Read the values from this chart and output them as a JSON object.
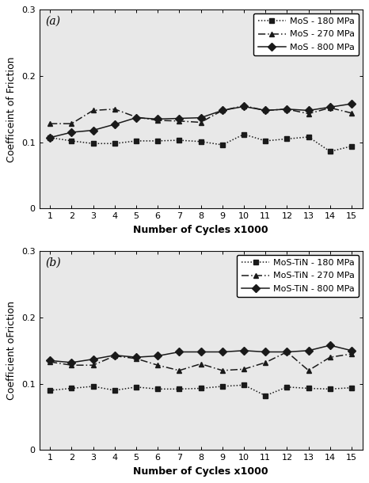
{
  "x": [
    1,
    2,
    3,
    4,
    5,
    6,
    7,
    8,
    9,
    10,
    11,
    12,
    13,
    14,
    15
  ],
  "panel_a": {
    "label": "(a)",
    "ylabel": "Coefficeint of Friction",
    "xlabel": "Number of Cycles x1000",
    "series": [
      {
        "label": "MoS - 180 MPa",
        "linestyle": "dotted",
        "marker": "s",
        "color": "#1a1a1a",
        "values": [
          0.107,
          0.102,
          0.098,
          0.098,
          0.102,
          0.102,
          0.103,
          0.101,
          0.096,
          0.112,
          0.102,
          0.105,
          0.108,
          0.086,
          0.094
        ]
      },
      {
        "label": "MoS - 270 MPa",
        "linestyle": "dashed",
        "marker": "^",
        "color": "#1a1a1a",
        "values": [
          0.128,
          0.128,
          0.148,
          0.15,
          0.138,
          0.133,
          0.132,
          0.13,
          0.148,
          0.155,
          0.148,
          0.15,
          0.143,
          0.152,
          0.144
        ]
      },
      {
        "label": "MoS - 800 MPa",
        "linestyle": "solid",
        "marker": "D",
        "color": "#1a1a1a",
        "values": [
          0.107,
          0.115,
          0.118,
          0.127,
          0.137,
          0.135,
          0.136,
          0.137,
          0.148,
          0.154,
          0.148,
          0.15,
          0.148,
          0.153,
          0.158
        ]
      }
    ]
  },
  "panel_b": {
    "label": "(b)",
    "ylabel": "Coefficient oFriction",
    "xlabel": "Number of Cycles x1000",
    "series": [
      {
        "label": "MoS-TiN - 180 MPa",
        "linestyle": "dotted",
        "marker": "s",
        "color": "#1a1a1a",
        "values": [
          0.09,
          0.093,
          0.096,
          0.09,
          0.095,
          0.092,
          0.092,
          0.093,
          0.096,
          0.098,
          0.082,
          0.095,
          0.093,
          0.092,
          0.094
        ]
      },
      {
        "label": "MoS-TiN - 270 MPa",
        "linestyle": "dashed",
        "marker": "^",
        "color": "#1a1a1a",
        "values": [
          0.133,
          0.128,
          0.128,
          0.142,
          0.138,
          0.128,
          0.12,
          0.13,
          0.12,
          0.122,
          0.132,
          0.148,
          0.12,
          0.14,
          0.145
        ]
      },
      {
        "label": "MoS-TiN - 800 MPa",
        "linestyle": "solid",
        "marker": "D",
        "color": "#1a1a1a",
        "values": [
          0.135,
          0.132,
          0.137,
          0.143,
          0.14,
          0.142,
          0.148,
          0.148,
          0.148,
          0.15,
          0.148,
          0.148,
          0.15,
          0.158,
          0.15
        ]
      }
    ]
  },
  "ylim": [
    0,
    0.3
  ],
  "yticks": [
    0,
    0.1,
    0.2,
    0.3
  ],
  "xticks": [
    1,
    2,
    3,
    4,
    5,
    6,
    7,
    8,
    9,
    10,
    11,
    12,
    13,
    14,
    15
  ],
  "background_color": "#ffffff",
  "plot_bg_color": "#e8e8e8",
  "marker_size": 5,
  "linewidth": 1.1,
  "fontsize_label": 9,
  "fontsize_tick": 8,
  "fontsize_legend": 8,
  "fontsize_panel_label": 10
}
